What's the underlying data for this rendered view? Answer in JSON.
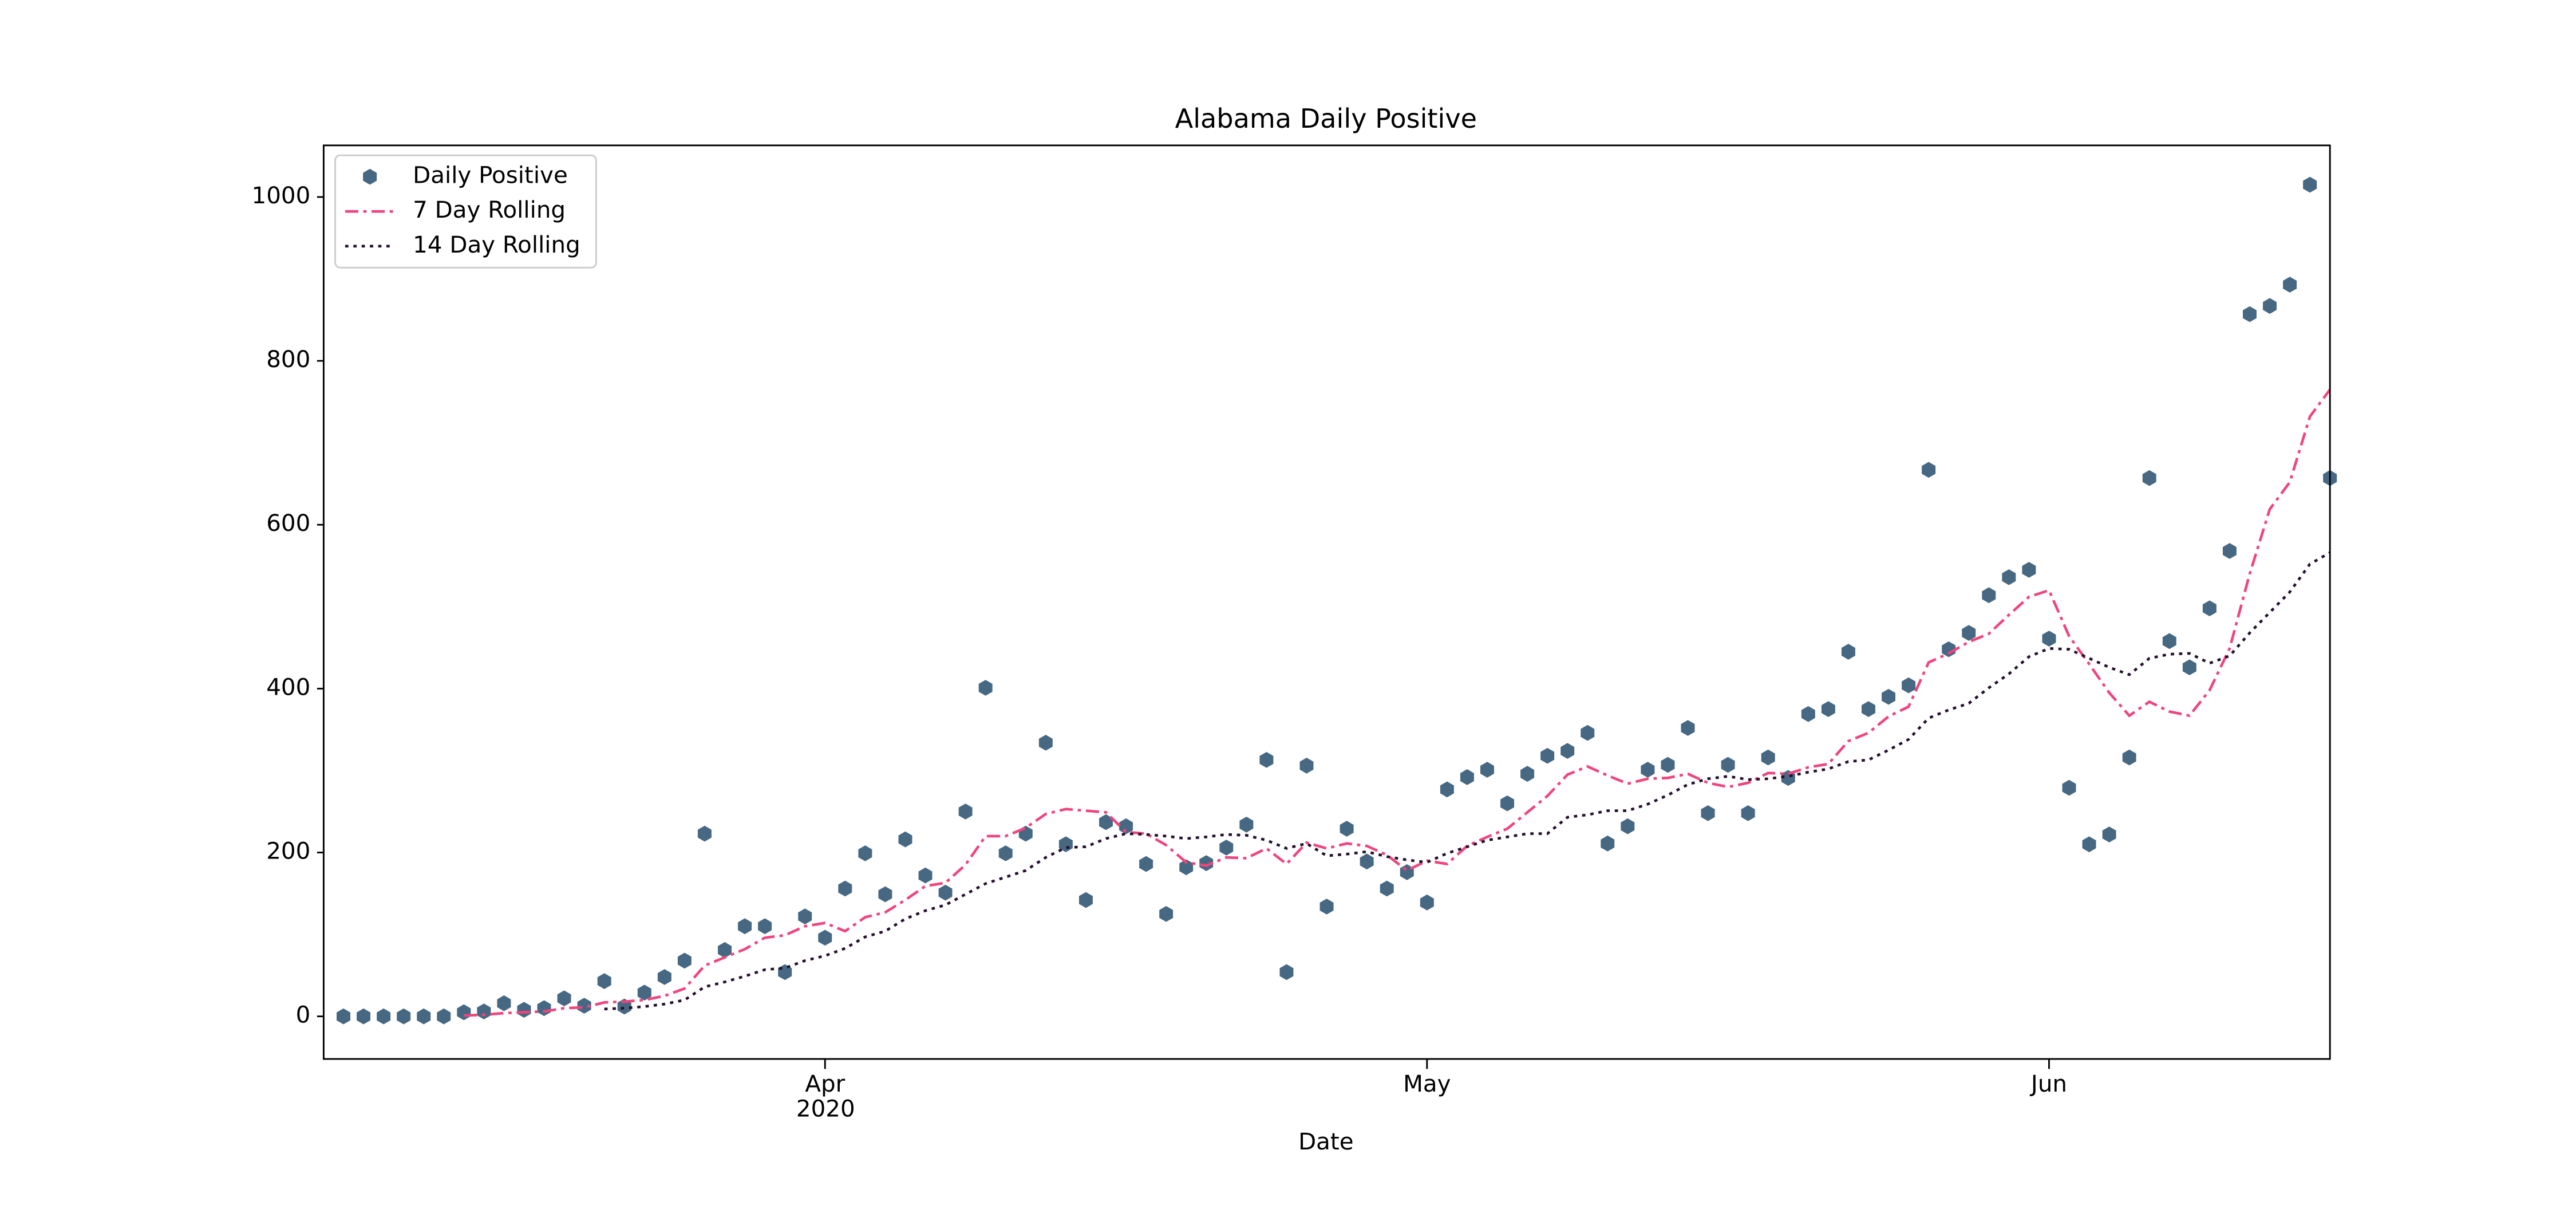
{
  "chart_data": {
    "type": "scatter-line",
    "title": "Alabama Daily Positive",
    "x_label": "Date",
    "year_label": "2020",
    "categories": [
      null,
      null,
      null,
      null,
      null,
      null,
      null,
      null,
      null,
      null,
      null,
      null,
      null,
      null,
      null,
      null,
      null,
      null,
      null,
      null,
      null,
      null,
      null,
      null,
      "Apr",
      null,
      null,
      null,
      null,
      null,
      null,
      null,
      null,
      null,
      null,
      null,
      null,
      null,
      null,
      null,
      null,
      null,
      null,
      null,
      null,
      null,
      null,
      null,
      null,
      null,
      null,
      null,
      null,
      null,
      "May",
      null,
      null,
      null,
      null,
      null,
      null,
      null,
      null,
      null,
      null,
      null,
      null,
      null,
      null,
      null,
      null,
      null,
      null,
      null,
      null,
      null,
      null,
      null,
      null,
      null,
      null,
      null,
      null,
      null,
      null,
      "Jun",
      null,
      null,
      null,
      null,
      null,
      null,
      null,
      null,
      null,
      null,
      null,
      null,
      null,
      null
    ],
    "series": [
      {
        "name": "Daily Positive",
        "color": "#476883",
        "style": "marker",
        "marker": "hexagon",
        "values": [
          0,
          0,
          0,
          0,
          0,
          0,
          5,
          6,
          16,
          8,
          10,
          22,
          13,
          43,
          12,
          29,
          48,
          68,
          223,
          81,
          110,
          110,
          54,
          122,
          96,
          156,
          199,
          149,
          216,
          172,
          151,
          250,
          401,
          199,
          223,
          334,
          210,
          142,
          237,
          232,
          186,
          125,
          182,
          187,
          206,
          234,
          313,
          54,
          306,
          134,
          229,
          189,
          156,
          176,
          139,
          277,
          292,
          301,
          260,
          296,
          318,
          324,
          346,
          211,
          232,
          301,
          307,
          352,
          248,
          307,
          248,
          316,
          291,
          369,
          375,
          445,
          375,
          390,
          404,
          667,
          448,
          468,
          514,
          536,
          545,
          461,
          279,
          210,
          222,
          316,
          657,
          458,
          426,
          498,
          568,
          857,
          867,
          893,
          1015,
          657
        ]
      },
      {
        "name": "7 Day Rolling",
        "color": "#f0457c",
        "style": "dashdot",
        "values": [
          null,
          null,
          null,
          null,
          null,
          null,
          1,
          2,
          4,
          5,
          6,
          10,
          11,
          17,
          18,
          20,
          25,
          34,
          62,
          72,
          82,
          96,
          99,
          110,
          114,
          104,
          121,
          127,
          142,
          159,
          163,
          185,
          220,
          220,
          230,
          247,
          253,
          251,
          249,
          225,
          223,
          209,
          188,
          184,
          194,
          193,
          205,
          186,
          212,
          205,
          211,
          208,
          197,
          178,
          190,
          186,
          208,
          219,
          229,
          249,
          269,
          295,
          305,
          294,
          284,
          290,
          291,
          296,
          285,
          280,
          285,
          297,
          296,
          304,
          308,
          336,
          346,
          366,
          378,
          432,
          443,
          457,
          467,
          490,
          512,
          520,
          464,
          430,
          395,
          367,
          384,
          372,
          367,
          398,
          449,
          540,
          619,
          652,
          732,
          765
        ]
      },
      {
        "name": "14 Day Rolling",
        "color": "#24102e",
        "style": "dotted",
        "values": [
          null,
          null,
          null,
          null,
          null,
          null,
          null,
          null,
          null,
          null,
          null,
          null,
          null,
          9,
          10,
          12,
          15,
          20,
          36,
          42,
          49,
          57,
          59,
          68,
          74,
          83,
          97,
          104,
          119,
          129,
          136,
          149,
          162,
          170,
          178,
          194,
          206,
          207,
          217,
          223,
          222,
          220,
          217,
          219,
          222,
          221,
          215,
          205,
          211,
          196,
          198,
          201,
          195,
          191,
          188,
          199,
          207,
          215,
          219,
          223,
          223,
          243,
          246,
          251,
          251,
          259,
          270,
          283,
          290,
          293,
          289,
          290,
          293,
          298,
          302,
          311,
          313,
          325,
          338,
          364,
          374,
          382,
          401,
          418,
          439,
          449,
          448,
          437,
          426,
          417,
          437,
          442,
          443,
          431,
          440,
          468,
          493,
          518,
          552,
          566
        ]
      }
    ],
    "ylim": [
      -52,
      1063
    ],
    "yticks": [
      0,
      200,
      400,
      600,
      800,
      1000
    ],
    "grid": false,
    "legend": "upper left"
  }
}
